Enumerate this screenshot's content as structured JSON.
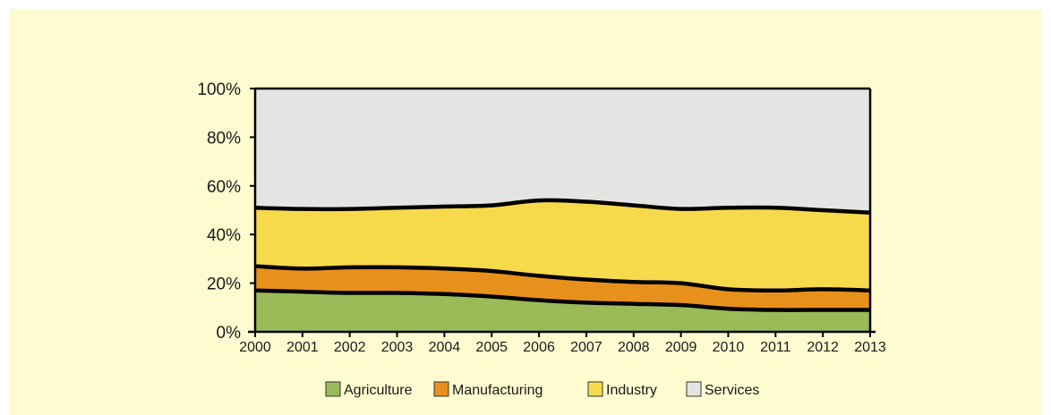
{
  "chart_data": {
    "type": "area",
    "stacked": true,
    "normalized_percent": true,
    "x": [
      "2000",
      "2001",
      "2002",
      "2003",
      "2004",
      "2005",
      "2006",
      "2007",
      "2008",
      "2009",
      "2010",
      "2011",
      "2012",
      "2013"
    ],
    "series": [
      {
        "name": "Agriculture",
        "color": "#9bbb59",
        "values": [
          17,
          16.5,
          16,
          16,
          15.5,
          14.5,
          13,
          12,
          11.5,
          11,
          9.5,
          9,
          9,
          9
        ]
      },
      {
        "name": "Manufacturing",
        "color": "#e8901c",
        "values": [
          10,
          9.5,
          10.5,
          10.5,
          10.5,
          10.5,
          10,
          9.5,
          9,
          9,
          8,
          8,
          8.5,
          8
        ]
      },
      {
        "name": "Industry",
        "color": "#f7d94c",
        "values": [
          24,
          24.5,
          24,
          24.5,
          25.5,
          27,
          31,
          32,
          31.5,
          30.5,
          33.5,
          34,
          32.5,
          32
        ]
      },
      {
        "name": "Services",
        "color": "#e4e4e2",
        "values": [
          49,
          49.5,
          49.5,
          49,
          48.5,
          48,
          46,
          46.5,
          48,
          49.5,
          49,
          49,
          50,
          51
        ]
      }
    ],
    "y_ticks": [
      "0%",
      "20%",
      "40%",
      "60%",
      "80%",
      "100%"
    ],
    "ylim": [
      0,
      100
    ],
    "legend_position": "bottom",
    "title": "",
    "xlabel": "",
    "ylabel": ""
  }
}
